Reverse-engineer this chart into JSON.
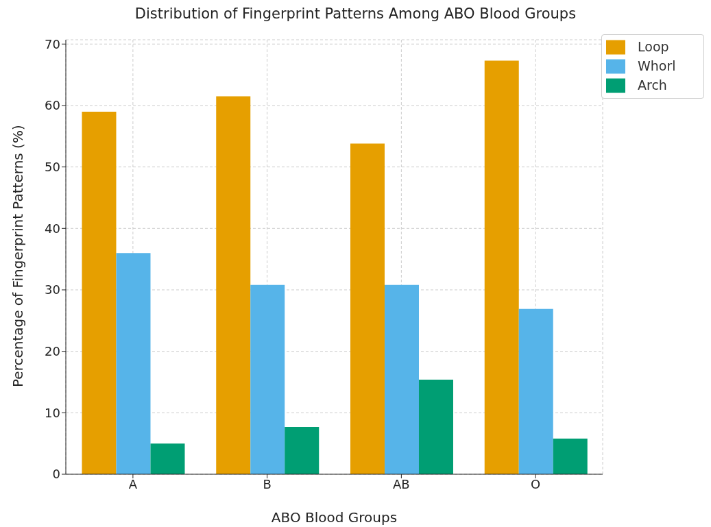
{
  "chart_data": {
    "type": "bar",
    "title": "Distribution of Fingerprint Patterns Among ABO Blood Groups",
    "xlabel": "ABO Blood Groups",
    "ylabel": "Percentage of Fingerprint Patterns (%)",
    "categories": [
      "A",
      "B",
      "AB",
      "O"
    ],
    "series": [
      {
        "name": "Loop",
        "color": "#e69f00",
        "values": [
          59.0,
          61.5,
          53.8,
          67.3
        ]
      },
      {
        "name": "Whorl",
        "color": "#56b4e9",
        "values": [
          36.0,
          30.8,
          30.8,
          26.9
        ]
      },
      {
        "name": "Arch",
        "color": "#009e73",
        "values": [
          5.0,
          7.7,
          15.4,
          5.8
        ]
      }
    ],
    "ylim": [
      0,
      70.7
    ],
    "yticks": [
      0,
      10,
      20,
      30,
      40,
      50,
      60,
      70
    ],
    "grid": true,
    "legend": "top right"
  }
}
